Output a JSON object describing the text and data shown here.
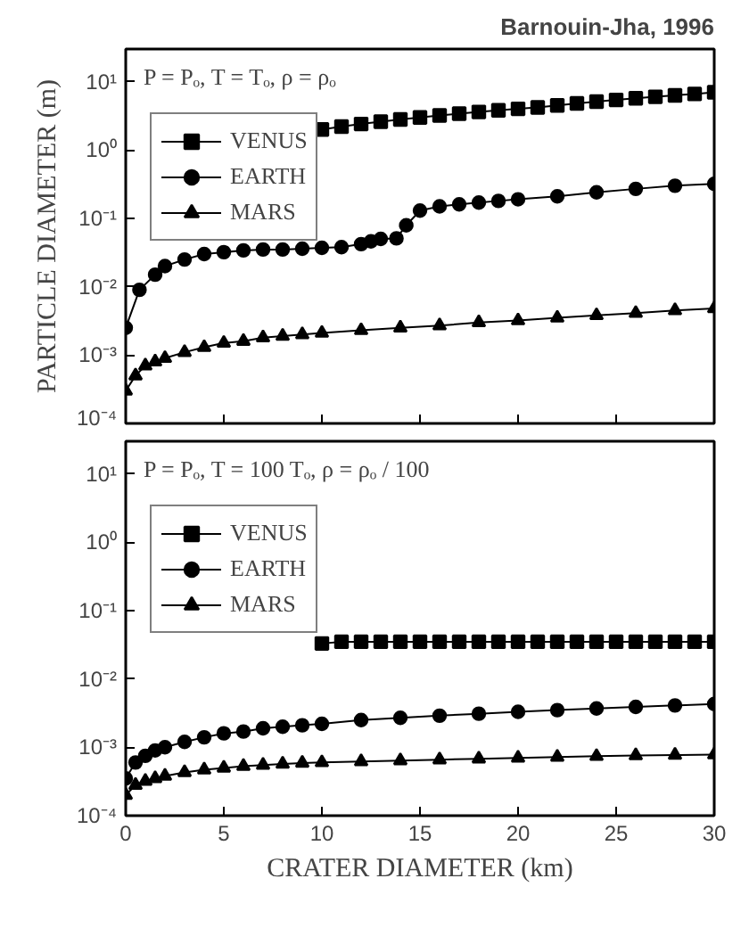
{
  "chart_data": [
    {
      "type": "line",
      "annotations": [
        "Barnouin-Jha, 1996",
        "P = Pₒ, T = Tₒ, ρ = ρₒ"
      ],
      "ylabel": "PARTICLE DIAMETER (m)",
      "log": "y",
      "xlim": [
        0,
        30
      ],
      "xticks": [
        0,
        5,
        10,
        15,
        20,
        25,
        30
      ],
      "ylim": [
        0.0001,
        30
      ],
      "yticks": [
        {
          "value": 10,
          "label": "10¹"
        },
        {
          "value": 1,
          "label": "10⁰"
        },
        {
          "value": 0.1,
          "label": "10⁻¹"
        },
        {
          "value": 0.01,
          "label": "10⁻²"
        },
        {
          "value": 0.001,
          "label": "10⁻³"
        },
        {
          "value": 0.0001,
          "label": "10⁻⁴"
        }
      ],
      "tick_labels": "y",
      "legend": "top left",
      "grid": false,
      "line_style": "solid",
      "series": [
        {
          "name": "VENUS",
          "color": "#000000",
          "marker": "square",
          "x": [
            10,
            11,
            12,
            13,
            14,
            15,
            16,
            17,
            18,
            19,
            20,
            21,
            22,
            23,
            24,
            25,
            26,
            27,
            28,
            29,
            30
          ],
          "values": [
            2,
            2.2,
            2.4,
            2.6,
            2.8,
            3,
            3.2,
            3.4,
            3.6,
            3.8,
            4,
            4.2,
            4.5,
            4.8,
            5.1,
            5.4,
            5.7,
            6,
            6.3,
            6.6,
            7
          ]
        },
        {
          "name": "EARTH",
          "color": "#000000",
          "marker": "circle",
          "x": [
            0,
            0.7,
            1.5,
            2,
            3,
            4,
            5,
            6,
            7,
            8,
            9,
            10,
            11,
            12,
            12.5,
            13,
            13.8,
            14.3,
            15,
            16,
            17,
            18,
            19,
            20,
            22,
            24,
            26,
            28,
            30
          ],
          "values": [
            0.0025,
            0.009,
            0.015,
            0.02,
            0.025,
            0.03,
            0.032,
            0.034,
            0.035,
            0.035,
            0.036,
            0.037,
            0.038,
            0.042,
            0.046,
            0.05,
            0.051,
            0.079,
            0.13,
            0.15,
            0.16,
            0.17,
            0.18,
            0.19,
            0.21,
            0.24,
            0.27,
            0.3,
            0.32
          ]
        },
        {
          "name": "MARS",
          "color": "#000000",
          "marker": "triangle",
          "x": [
            0,
            0.5,
            1,
            1.5,
            2,
            3,
            4,
            5,
            6,
            7,
            8,
            9,
            10,
            12,
            14,
            16,
            18,
            20,
            22,
            24,
            26,
            28,
            30
          ],
          "values": [
            0.0003,
            0.0005,
            0.0007,
            0.0008,
            0.0009,
            0.0011,
            0.0013,
            0.0015,
            0.0016,
            0.0018,
            0.0019,
            0.002,
            0.0021,
            0.0023,
            0.0025,
            0.0027,
            0.003,
            0.0032,
            0.0035,
            0.0038,
            0.0041,
            0.0045,
            0.0048
          ]
        }
      ]
    },
    {
      "type": "line",
      "annotations": [
        "P = Pₒ, T = 100 Tₒ, ρ = ρₒ / 100"
      ],
      "xlabel": "CRATER DIAMETER (km)",
      "log": "y",
      "xlim": [
        0,
        30
      ],
      "xticks": [
        0,
        5,
        10,
        15,
        20,
        25,
        30
      ],
      "ylim": [
        0.0001,
        30
      ],
      "yticks": [
        {
          "value": 10,
          "label": "10¹"
        },
        {
          "value": 1,
          "label": "10⁰"
        },
        {
          "value": 0.1,
          "label": "10⁻¹"
        },
        {
          "value": 0.01,
          "label": "10⁻²"
        },
        {
          "value": 0.001,
          "label": "10⁻³"
        },
        {
          "value": 0.0001,
          "label": "10⁻⁴"
        }
      ],
      "legend": "top left",
      "grid": false,
      "line_style": "solid",
      "series": [
        {
          "name": "VENUS",
          "color": "#000000",
          "marker": "square",
          "x": [
            10,
            11,
            12,
            13,
            14,
            15,
            16,
            17,
            18,
            19,
            20,
            21,
            22,
            23,
            24,
            25,
            26,
            27,
            28,
            29,
            30
          ],
          "values": [
            0.033,
            0.035,
            0.035,
            0.035,
            0.035,
            0.035,
            0.035,
            0.035,
            0.035,
            0.035,
            0.035,
            0.035,
            0.035,
            0.035,
            0.035,
            0.035,
            0.035,
            0.035,
            0.035,
            0.035,
            0.035
          ]
        },
        {
          "name": "EARTH",
          "color": "#000000",
          "marker": "circle",
          "x": [
            0,
            0.5,
            1,
            1.5,
            2,
            3,
            4,
            5,
            6,
            7,
            8,
            9,
            10,
            12,
            14,
            16,
            18,
            20,
            22,
            24,
            26,
            28,
            30
          ],
          "values": [
            0.00035,
            0.0006,
            0.00075,
            0.0009,
            0.001,
            0.0012,
            0.0014,
            0.0016,
            0.0017,
            0.0019,
            0.002,
            0.0021,
            0.0022,
            0.0025,
            0.0027,
            0.0029,
            0.0031,
            0.0033,
            0.0035,
            0.0037,
            0.0039,
            0.0041,
            0.0043
          ]
        },
        {
          "name": "MARS",
          "color": "#000000",
          "marker": "triangle",
          "x": [
            0,
            0.5,
            1,
            1.5,
            2,
            3,
            4,
            5,
            6,
            7,
            8,
            9,
            10,
            12,
            14,
            16,
            18,
            20,
            22,
            24,
            26,
            28,
            30
          ],
          "values": [
            0.0002,
            0.00028,
            0.00032,
            0.00035,
            0.00038,
            0.00043,
            0.00047,
            0.0005,
            0.00053,
            0.00055,
            0.00057,
            0.00059,
            0.0006,
            0.00062,
            0.00064,
            0.00066,
            0.00068,
            0.0007,
            0.00072,
            0.00074,
            0.00076,
            0.00077,
            0.00078
          ]
        }
      ]
    }
  ]
}
